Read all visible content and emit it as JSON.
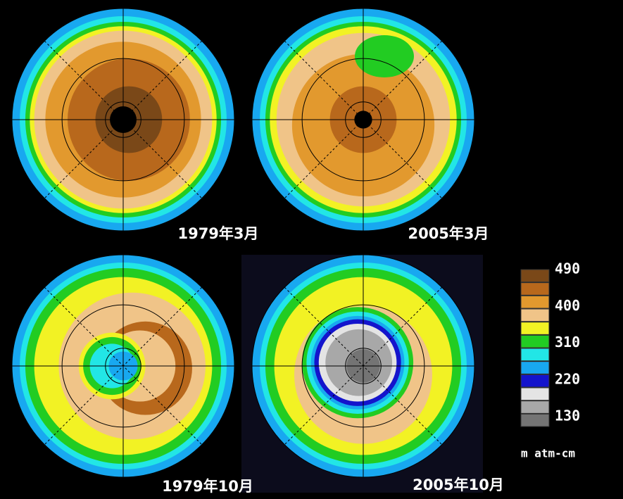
{
  "panels": [
    {
      "label": "1979年3月"
    },
    {
      "label": "2005年3月"
    },
    {
      "label": "1979年10月"
    },
    {
      "label": "2005年10月"
    }
  ],
  "legend": {
    "ticks": [
      490,
      400,
      310,
      220,
      130
    ],
    "unit": "m atm-cm",
    "colors": [
      "#7a4818",
      "#b8681c",
      "#e2992e",
      "#f0c488",
      "#f2f224",
      "#22cc22",
      "#22e6e6",
      "#18a8f0",
      "#1414cc",
      "#e4e4e4",
      "#a8a8a8",
      "#747474"
    ]
  }
}
